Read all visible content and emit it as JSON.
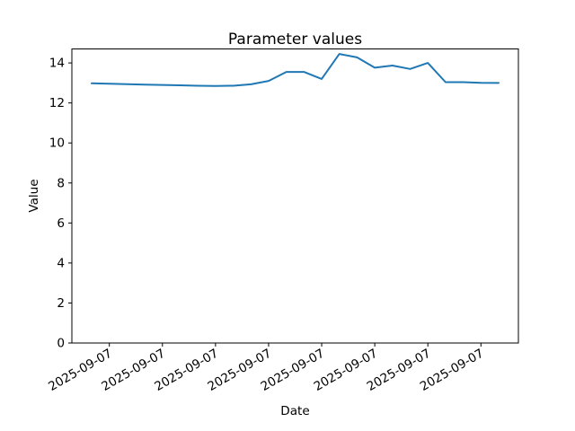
{
  "figure": {
    "background": "#ffffff"
  },
  "chart_data": {
    "type": "line",
    "title": "Parameter values",
    "xlabel": "Date",
    "ylabel": "Value",
    "x_tick_labels": [
      "2025-09-07",
      "2025-09-07",
      "2025-09-07",
      "2025-09-07",
      "2025-09-07",
      "2025-09-07",
      "2025-09-07",
      "2025-09-07"
    ],
    "x_tick_indices": [
      1,
      4,
      7,
      10,
      13,
      16,
      19,
      22
    ],
    "y_ticks": [
      0,
      2,
      4,
      6,
      8,
      10,
      12,
      14
    ],
    "ylim": [
      0,
      14.7
    ],
    "values": [
      12.98,
      12.96,
      12.94,
      12.92,
      12.9,
      12.88,
      12.86,
      12.85,
      12.86,
      12.93,
      13.1,
      13.55,
      13.55,
      13.2,
      14.45,
      14.28,
      13.76,
      13.87,
      13.7,
      14.0,
      13.04,
      13.04,
      13.01,
      13.0
    ],
    "line_color": "#1f77b4",
    "axis_color": "#000000",
    "grid": false,
    "legend": false
  }
}
